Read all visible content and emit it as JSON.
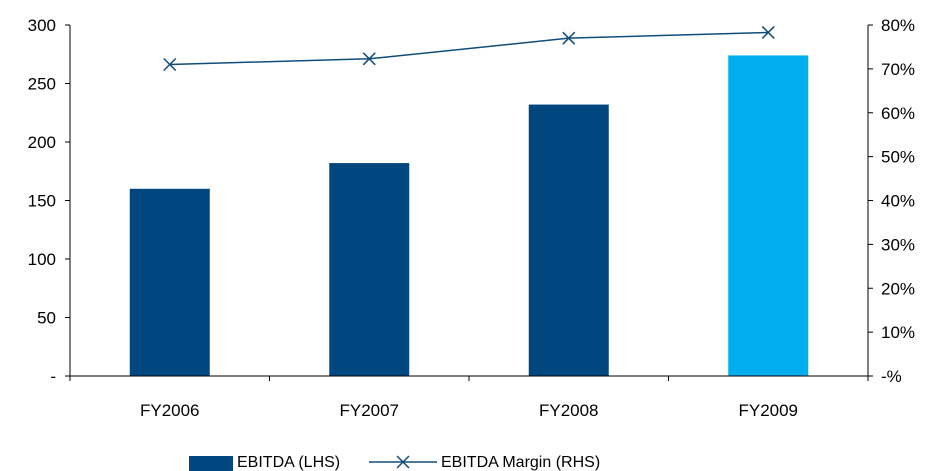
{
  "chart_data": {
    "type": "bar",
    "title": "",
    "categories": [
      "FY2006",
      "FY2007",
      "FY2008",
      "FY2009"
    ],
    "series": [
      {
        "name": "EBITDA (LHS)",
        "type": "bar",
        "axis": "left",
        "values": [
          160,
          182,
          232,
          274
        ],
        "color": "#00467F",
        "point_colors": [
          "#00467F",
          "#00467F",
          "#00467F",
          "#00AEEF"
        ]
      },
      {
        "name": "EBITDA Margin (RHS)",
        "type": "line",
        "axis": "right",
        "marker": "x",
        "values": [
          71,
          72.3,
          77,
          78.3
        ],
        "color": "#0F4D7A"
      }
    ],
    "y_left": {
      "ylim": [
        0,
        300
      ],
      "ticks": [
        0,
        50,
        100,
        150,
        200,
        250,
        300
      ],
      "tick_labels": [
        "-",
        "50",
        "100",
        "150",
        "200",
        "250",
        "300"
      ]
    },
    "y_right": {
      "ylim": [
        0,
        80
      ],
      "ticks": [
        0,
        10,
        20,
        30,
        40,
        50,
        60,
        70,
        80
      ],
      "tick_labels": [
        "-%",
        "10%",
        "20%",
        "30%",
        "40%",
        "50%",
        "60%",
        "70%",
        "80%"
      ]
    },
    "grid": false,
    "legend": {
      "position": "bottom"
    }
  }
}
